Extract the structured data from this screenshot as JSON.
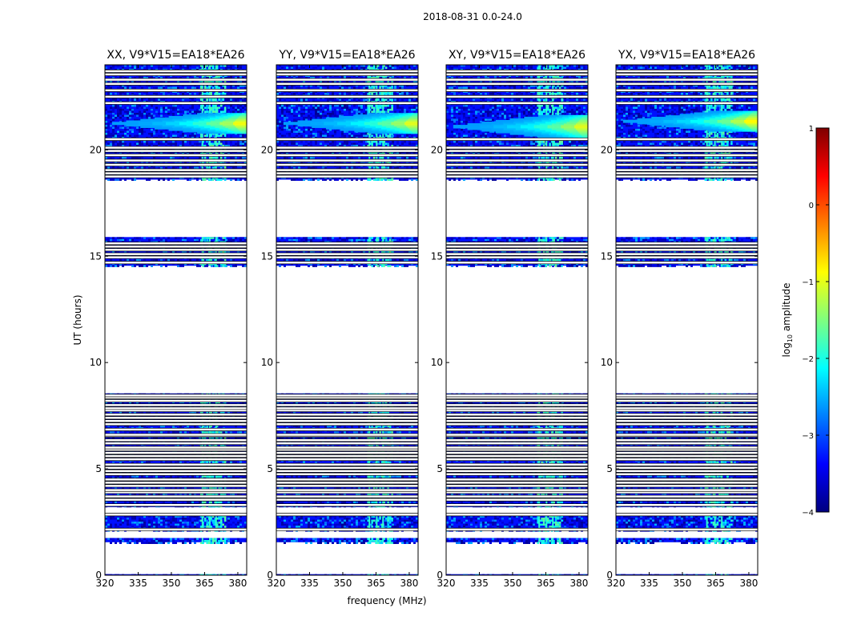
{
  "chart_data": {
    "type": "heatmap",
    "suptitle": "2018-08-31 0.0-24.0",
    "xlabel": "frequency (MHz)",
    "ylabel": "UT (hours)",
    "xlim": [
      320,
      384
    ],
    "ylim": [
      0,
      24
    ],
    "xticks": [
      320,
      335,
      350,
      365,
      380
    ],
    "yticks": [
      0,
      5,
      10,
      15,
      20
    ],
    "colorbar": {
      "label_main": "log",
      "label_sub": "10",
      "label_rest": " amplitude",
      "range": [
        -4,
        1
      ],
      "ticks": [
        -4,
        -3,
        -2,
        -1,
        0,
        1
      ],
      "colors": [
        "#00007f",
        "#0000ff",
        "#007fff",
        "#00ffff",
        "#7fff7f",
        "#ffff00",
        "#ff7f00",
        "#ff0000",
        "#7f0000"
      ]
    },
    "panels": [
      {
        "title": "XX, V9*V15=EA18*EA26",
        "rfi_band": [
          363,
          374
        ],
        "signal_ut": [
          20.8,
          21.7
        ],
        "signal_peak": -0.4
      },
      {
        "title": "YY, V9*V15=EA18*EA26",
        "rfi_band": [
          361,
          372
        ],
        "signal_ut": [
          20.8,
          21.7
        ],
        "signal_peak": -0.5
      },
      {
        "title": "XY, V9*V15=EA18*EA26",
        "rfi_band": [
          361,
          372
        ],
        "signal_ut": [
          20.6,
          21.6
        ],
        "signal_peak": -0.5
      },
      {
        "title": "YX, V9*V15=EA18*EA26",
        "rfi_band": [
          360,
          372
        ],
        "signal_ut": [
          20.9,
          21.8
        ],
        "signal_peak": -0.3
      }
    ],
    "data_segments_ut": [
      [
        0.0,
        0.05
      ],
      [
        1.55,
        1.75
      ],
      [
        2.1,
        2.8
      ],
      [
        3.2,
        8.55
      ],
      [
        14.55,
        15.9
      ],
      [
        18.6,
        24.0
      ]
    ],
    "flagged_rows_ut": [
      2.15,
      2.85,
      3.3,
      3.55,
      3.7,
      3.9,
      4.0,
      4.2,
      4.35,
      4.5,
      4.75,
      4.9,
      5.05,
      5.2,
      5.45,
      5.6,
      5.75,
      5.9,
      6.0,
      6.2,
      6.35,
      6.55,
      6.6,
      6.85,
      7.1,
      7.25,
      7.4,
      7.55,
      7.75,
      7.85,
      8.0,
      8.2,
      8.35,
      8.45,
      14.7,
      14.95,
      15.1,
      15.3,
      15.45,
      15.6,
      18.75,
      18.9,
      19.05,
      19.3,
      19.5,
      19.75,
      19.95,
      20.1,
      20.5,
      22.2,
      22.5,
      22.8,
      23.1,
      23.3,
      23.55,
      23.7
    ]
  }
}
